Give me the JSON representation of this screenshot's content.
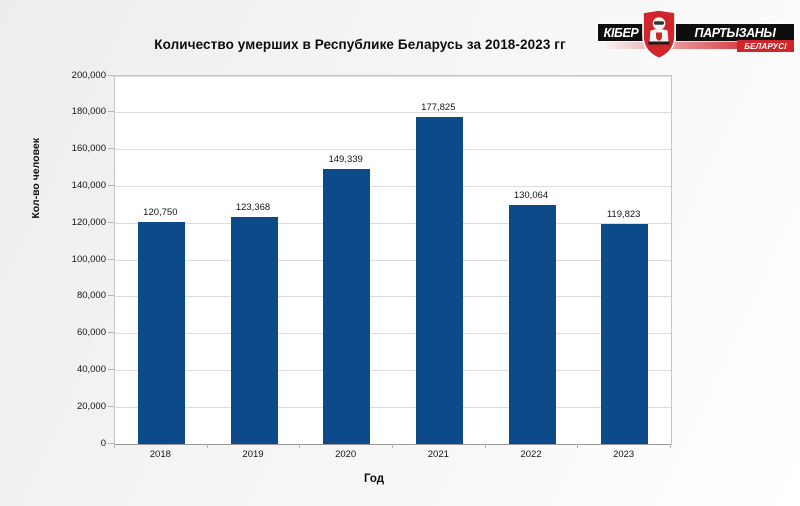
{
  "logo": {
    "kiber": "КІБЕР",
    "partyzany": "ПАРТЫЗАНЫ",
    "belarusi": "БЕЛАРУСІ",
    "red": "#d0252b",
    "black": "#0e0e0e"
  },
  "chart_data": {
    "type": "bar",
    "title": "Количество умерших в Республике Беларусь за 2018-2023 гг",
    "categories": [
      "2018",
      "2019",
      "2020",
      "2021",
      "2022",
      "2023"
    ],
    "values": [
      120750,
      123368,
      149339,
      177825,
      130064,
      119823
    ],
    "value_labels": [
      "120,750",
      "123,368",
      "149,339",
      "177,825",
      "130,064",
      "119,823"
    ],
    "xlabel": "Год",
    "ylabel": "Кол-во человек",
    "ylim": [
      0,
      200000
    ],
    "ytick_step": 20000,
    "ytick_labels": [
      "0",
      "20,000",
      "40,000",
      "60,000",
      "80,000",
      "100,000",
      "120,000",
      "140,000",
      "160,000",
      "180,000",
      "200,000"
    ],
    "bar_color": "#0c4a8a",
    "grid": true,
    "legend": false,
    "plot_background": "#ffffff"
  }
}
